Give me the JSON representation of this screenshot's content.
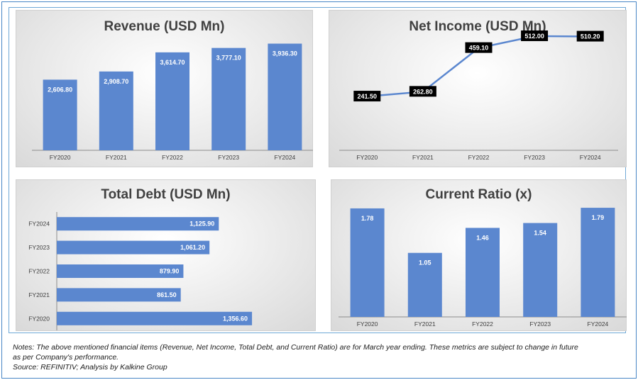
{
  "panels": {
    "revenue": {
      "title": "Revenue (USD Mn)",
      "chart_data": {
        "type": "bar",
        "title": "Revenue (USD Mn)",
        "categories": [
          "FY2020",
          "FY2021",
          "FY2022",
          "FY2023",
          "FY2024"
        ],
        "values": [
          2606.8,
          2908.7,
          3614.7,
          3777.1,
          3936.3
        ],
        "labels": [
          "2,606.80",
          "2,908.70",
          "3,614.70",
          "3,777.10",
          "3,936.30"
        ],
        "ylim": [
          0,
          4500
        ],
        "bar_color": "#5b87cf",
        "grid": false
      }
    },
    "net_income": {
      "title": "Net Income (USD Mn)",
      "chart_data": {
        "type": "line",
        "title": "Net Income (USD Mn)",
        "categories": [
          "FY2020",
          "FY2021",
          "FY2022",
          "FY2023",
          "FY2024"
        ],
        "values": [
          241.5,
          262.8,
          459.1,
          512.0,
          510.2
        ],
        "labels": [
          "241.50",
          "262.80",
          "459.10",
          "512.00",
          "510.20"
        ],
        "ylim": [
          0,
          620
        ],
        "line_color": "#5b87cf",
        "label_bg": "#000000",
        "grid": false
      }
    },
    "total_debt": {
      "title": "Total Debt (USD Mn)",
      "chart_data": {
        "type": "bar",
        "orientation": "horizontal",
        "title": "Total Debt (USD Mn)",
        "categories": [
          "FY2024",
          "FY2023",
          "FY2022",
          "FY2021",
          "FY2020"
        ],
        "values": [
          1125.9,
          1061.2,
          879.9,
          861.5,
          1356.6
        ],
        "labels": [
          "1,125.90",
          "1,061.20",
          "879.90",
          "861.50",
          "1,356.60"
        ],
        "xlim": [
          0,
          1800
        ],
        "bar_color": "#5b87cf",
        "grid": false
      }
    },
    "current_ratio": {
      "title": "Current Ratio (x)",
      "chart_data": {
        "type": "bar",
        "title": "Current Ratio (x)",
        "categories": [
          "FY2020",
          "FY2021",
          "FY2022",
          "FY2023",
          "FY2024"
        ],
        "values": [
          1.78,
          1.05,
          1.46,
          1.54,
          1.79
        ],
        "labels": [
          "1.78",
          "1.05",
          "1.46",
          "1.54",
          "1.79"
        ],
        "ylim": [
          0,
          2.0
        ],
        "bar_color": "#5b87cf",
        "grid": false
      }
    }
  },
  "notes": {
    "line1": "Notes: The above mentioned financial items (Revenue, Net Income, Total Debt, and Current Ratio) are for March year ending. These metrics are subject to change in future",
    "line2": "as per Company's performance.",
    "line3": "Source: REFINITIV; Analysis by Kalkine Group"
  }
}
